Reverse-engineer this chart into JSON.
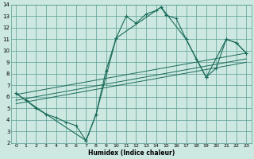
{
  "xlabel": "Humidex (Indice chaleur)",
  "bg_color": "#cce8e0",
  "grid_color": "#5a9e94",
  "line_color": "#1a6b5a",
  "xlim": [
    -0.5,
    23.5
  ],
  "ylim": [
    2,
    14
  ],
  "xticks": [
    0,
    1,
    2,
    3,
    4,
    5,
    6,
    7,
    8,
    9,
    10,
    11,
    12,
    13,
    14,
    15,
    16,
    17,
    18,
    19,
    20,
    21,
    22,
    23
  ],
  "yticks": [
    2,
    3,
    4,
    5,
    6,
    7,
    8,
    9,
    10,
    11,
    12,
    13,
    14
  ],
  "curve_x": [
    0,
    1,
    2,
    3,
    4,
    5,
    6,
    7,
    8,
    9,
    10,
    11,
    12,
    13,
    14,
    14.5,
    15,
    16,
    17,
    18,
    19,
    20,
    21,
    22,
    23
  ],
  "curve_y": [
    6.3,
    5.7,
    5.0,
    4.5,
    4.2,
    3.8,
    3.5,
    2.2,
    4.5,
    8.3,
    11.1,
    13.0,
    12.4,
    13.2,
    13.5,
    13.8,
    13.1,
    12.8,
    11.0,
    9.3,
    7.7,
    8.5,
    11.0,
    10.7,
    9.8
  ],
  "poly_x": [
    0,
    1,
    3,
    7,
    8,
    10,
    14.5,
    17,
    19,
    21,
    22,
    23
  ],
  "poly_y": [
    6.3,
    5.7,
    4.5,
    2.2,
    4.5,
    11.1,
    13.8,
    11.0,
    7.7,
    11.0,
    10.7,
    9.8
  ],
  "trend1_x": [
    0,
    23
  ],
  "trend1_y": [
    5.7,
    9.3
  ],
  "trend2_x": [
    0,
    23
  ],
  "trend2_y": [
    5.4,
    9.0
  ],
  "trend3_x": [
    0,
    23
  ],
  "trend3_y": [
    6.2,
    9.8
  ]
}
